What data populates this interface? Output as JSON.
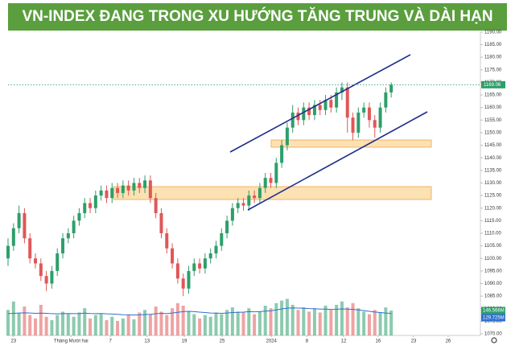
{
  "chart_data": {
    "type": "candlestick",
    "title": "VN-INDEX ĐANG TRONG XU HƯỚNG TĂNG TRUNG VÀ DÀI HẠN",
    "open": [
      1100,
      1105,
      1112,
      1118,
      1108,
      1100,
      1098,
      1093,
      1090,
      1095,
      1102,
      1108,
      1110,
      1115,
      1118,
      1122,
      1120,
      1125,
      1127,
      1124,
      1128,
      1126,
      1129,
      1127,
      1130,
      1128,
      1131,
      1124,
      1118,
      1110,
      1104,
      1098,
      1092,
      1088,
      1095,
      1098,
      1096,
      1100,
      1102,
      1105,
      1110,
      1115,
      1120,
      1122,
      1121,
      1125,
      1124,
      1128,
      1132,
      1130,
      1138,
      1145,
      1152,
      1158,
      1155,
      1160,
      1157,
      1161,
      1159,
      1163,
      1160,
      1166,
      1168,
      1156,
      1150,
      1158,
      1160,
      1155,
      1152,
      1160,
      1166
    ],
    "high": [
      1108,
      1114,
      1121,
      1120,
      1110,
      1102,
      1100,
      1095,
      1097,
      1104,
      1110,
      1112,
      1117,
      1120,
      1124,
      1124,
      1127,
      1129,
      1129,
      1130,
      1130,
      1131,
      1131,
      1132,
      1132,
      1133,
      1133,
      1126,
      1120,
      1112,
      1106,
      1100,
      1094,
      1097,
      1100,
      1100,
      1102,
      1104,
      1107,
      1112,
      1117,
      1122,
      1124,
      1124,
      1127,
      1127,
      1130,
      1134,
      1134,
      1140,
      1147,
      1154,
      1161,
      1160,
      1162,
      1162,
      1163,
      1163,
      1165,
      1165,
      1168,
      1170,
      1170,
      1158,
      1160,
      1162,
      1162,
      1157,
      1162,
      1168,
      1170
    ],
    "low": [
      1097,
      1103,
      1110,
      1106,
      1098,
      1096,
      1091,
      1087,
      1088,
      1093,
      1100,
      1106,
      1108,
      1113,
      1116,
      1118,
      1118,
      1123,
      1122,
      1122,
      1124,
      1124,
      1125,
      1125,
      1126,
      1126,
      1122,
      1116,
      1108,
      1102,
      1096,
      1090,
      1085,
      1086,
      1093,
      1094,
      1094,
      1098,
      1100,
      1103,
      1108,
      1113,
      1118,
      1119,
      1119,
      1122,
      1122,
      1126,
      1128,
      1128,
      1136,
      1143,
      1150,
      1153,
      1153,
      1155,
      1155,
      1157,
      1157,
      1158,
      1158,
      1163,
      1150,
      1147,
      1148,
      1156,
      1152,
      1148,
      1150,
      1158,
      1164
    ],
    "close": [
      1105,
      1112,
      1118,
      1108,
      1100,
      1098,
      1093,
      1090,
      1095,
      1102,
      1108,
      1110,
      1115,
      1118,
      1122,
      1120,
      1125,
      1127,
      1124,
      1128,
      1126,
      1129,
      1127,
      1130,
      1128,
      1131,
      1124,
      1118,
      1110,
      1104,
      1098,
      1092,
      1088,
      1095,
      1098,
      1096,
      1100,
      1102,
      1105,
      1110,
      1115,
      1120,
      1122,
      1121,
      1125,
      1124,
      1128,
      1132,
      1130,
      1138,
      1145,
      1152,
      1158,
      1155,
      1160,
      1157,
      1161,
      1159,
      1163,
      1160,
      1166,
      1168,
      1156,
      1150,
      1158,
      1160,
      1155,
      1152,
      1160,
      1166,
      1169.06
    ],
    "volume": [
      150,
      200,
      130,
      170,
      120,
      100,
      180,
      110,
      90,
      120,
      140,
      125,
      110,
      135,
      160,
      100,
      120,
      125,
      90,
      110,
      85,
      100,
      120,
      95,
      135,
      150,
      125,
      170,
      140,
      120,
      160,
      190,
      175,
      140,
      125,
      100,
      120,
      110,
      135,
      125,
      150,
      165,
      140,
      135,
      160,
      125,
      140,
      175,
      160,
      190,
      205,
      215,
      180,
      150,
      165,
      140,
      160,
      135,
      175,
      150,
      180,
      200,
      165,
      190,
      160,
      140,
      125,
      150,
      135,
      165,
      146.566
    ],
    "volume_ma": [
      128,
      130,
      132,
      133,
      132,
      130,
      131,
      130,
      128,
      127,
      128,
      129,
      128,
      129,
      131,
      129,
      128,
      129,
      127,
      126,
      124,
      122,
      121,
      120,
      121,
      123,
      124,
      128,
      130,
      129,
      132,
      136,
      140,
      142,
      140,
      137,
      135,
      132,
      131,
      130,
      132,
      135,
      136,
      137,
      140,
      139,
      140,
      143,
      145,
      150,
      156,
      160,
      162,
      161,
      160,
      158,
      157,
      155,
      155,
      153,
      154,
      156,
      155,
      153,
      150,
      146,
      142,
      138,
      135,
      132,
      129.725
    ],
    "volume_ma_label": {
      "value": 129.725,
      "label": "129.725M"
    },
    "volume_last_label": {
      "value": 146.566,
      "label": "146.566M"
    },
    "last_price": {
      "value": 1169.06,
      "label": "1169.06"
    },
    "up_color": "#2e9e6b",
    "down_color": "#e05757",
    "ylim": [
      1066.8,
      1192.2
    ],
    "vlim": [
      0,
      700
    ],
    "xlim": [
      0,
      86
    ],
    "yticks": [
      {
        "value": 1070,
        "label": "1070.00"
      },
      {
        "value": 1075,
        "label": "1075.00"
      },
      {
        "value": 1080,
        "label": "1080.00"
      },
      {
        "value": 1085,
        "label": "1085.00"
      },
      {
        "value": 1090,
        "label": "1090.00"
      },
      {
        "value": 1095,
        "label": "1095.00"
      },
      {
        "value": 1100,
        "label": "1100.00"
      },
      {
        "value": 1105,
        "label": "1105.00"
      },
      {
        "value": 1110,
        "label": "1110.00"
      },
      {
        "value": 1115,
        "label": "1115.00"
      },
      {
        "value": 1120,
        "label": "1120.00"
      },
      {
        "value": 1125,
        "label": "1125.00"
      },
      {
        "value": 1130,
        "label": "1130.00"
      },
      {
        "value": 1135,
        "label": "1135.00"
      },
      {
        "value": 1140,
        "label": "1140.00"
      },
      {
        "value": 1145,
        "label": "1145.00"
      },
      {
        "value": 1150,
        "label": "1150.00"
      },
      {
        "value": 1155,
        "label": "1155.00"
      },
      {
        "value": 1160,
        "label": "1160.00"
      },
      {
        "value": 1165,
        "label": "1165.00"
      },
      {
        "value": 1170,
        "label": "1170.00"
      },
      {
        "value": 1175,
        "label": "1175.00"
      },
      {
        "value": 1180,
        "label": "1180.00"
      },
      {
        "value": 1185,
        "label": "1185.00"
      },
      {
        "value": 1190,
        "label": "1190.00"
      }
    ],
    "xticks": [
      {
        "value": 1,
        "label": "23"
      },
      {
        "value": 11.5,
        "label": "Tháng Mười hai"
      },
      {
        "value": 18.7,
        "label": "7"
      },
      {
        "value": 25.4,
        "label": "13"
      },
      {
        "value": 32.2,
        "label": "19"
      },
      {
        "value": 39.1,
        "label": "25"
      },
      {
        "value": 48.1,
        "label": "2024"
      },
      {
        "value": 54.6,
        "label": "8"
      },
      {
        "value": 61.3,
        "label": "12"
      },
      {
        "value": 67.6,
        "label": "16"
      },
      {
        "value": 74.1,
        "label": "23"
      },
      {
        "value": 80.4,
        "label": "26"
      }
    ]
  }
}
